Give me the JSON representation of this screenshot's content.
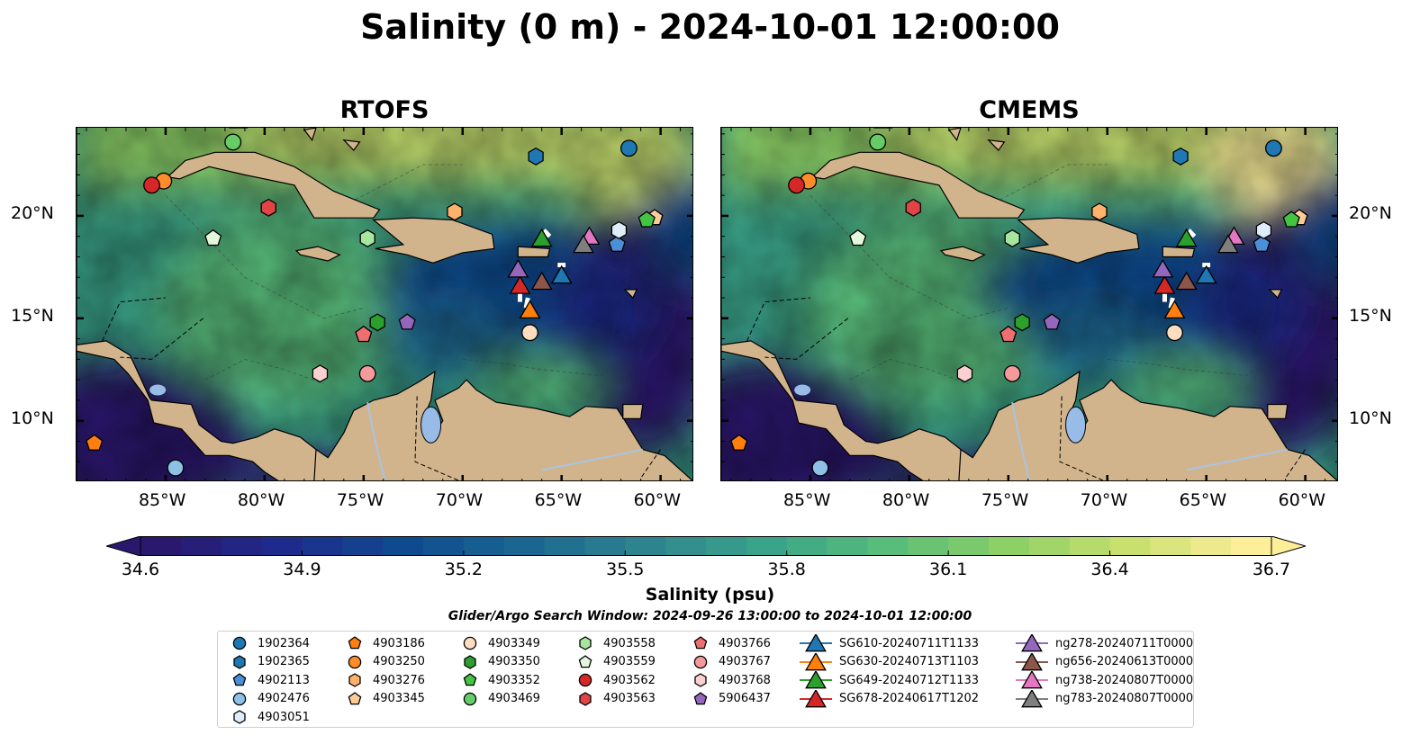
{
  "title": "Salinity (0 m) - 2024-10-01 12:00:00",
  "panels": [
    {
      "title": "RTOFS",
      "variant": "rtofs"
    },
    {
      "title": "CMEMS",
      "variant": "cmems"
    }
  ],
  "axes": {
    "lon_labels": [
      "85°W",
      "80°W",
      "75°W",
      "70°W",
      "65°W",
      "60°W"
    ],
    "lon_values": [
      -85,
      -80,
      -75,
      -70,
      -65,
      -60
    ],
    "lat_labels": [
      "20°N",
      "15°N",
      "10°N"
    ],
    "lat_values": [
      20,
      15,
      10
    ],
    "lon_range": [
      -89.5,
      -58.3
    ],
    "lat_range": [
      7.0,
      24.3
    ]
  },
  "colorbar": {
    "label": "Salinity (psu)",
    "ticks": [
      "34.6",
      "34.9",
      "35.2",
      "35.5",
      "35.8",
      "36.1",
      "36.4",
      "36.7"
    ],
    "range": [
      34.6,
      36.7
    ],
    "extend": "both",
    "colormap": "haline",
    "colors": [
      "#2a186c",
      "#1e2b8c",
      "#0f4a8f",
      "#1a6690",
      "#2e848e",
      "#3aa48a",
      "#58bc7a",
      "#8dd066",
      "#c9e06f",
      "#fdef9a"
    ]
  },
  "land_color": "#d2b48c",
  "lake_color": "#99bbe8",
  "search_window": "Glider/Argo Search Window: 2024-09-26 13:00:00 to 2024-10-01 12:00:00",
  "markers": [
    {
      "id": "1902364",
      "shape": "circle",
      "color": "#1f77b4",
      "lon": -61.6,
      "lat": 23.3
    },
    {
      "id": "1902365",
      "shape": "hexagon",
      "color": "#1f77b4",
      "lon": -66.3,
      "lat": 22.9
    },
    {
      "id": "4902113",
      "shape": "pentagon",
      "color": "#4a90d9",
      "lon": -62.2,
      "lat": 18.6
    },
    {
      "id": "4902476",
      "shape": "circle",
      "color": "#8ec1e8",
      "lon": -84.5,
      "lat": 7.7
    },
    {
      "id": "4903051",
      "shape": "hexagon",
      "color": "#ddeefa",
      "lon": -62.1,
      "lat": 19.3
    },
    {
      "id": "4903186",
      "shape": "pentagon",
      "color": "#ff7f0e",
      "lon": -88.6,
      "lat": 8.9
    },
    {
      "id": "4903250",
      "shape": "circle",
      "color": "#ff8c2a",
      "lon": -85.1,
      "lat": 21.7
    },
    {
      "id": "4903276",
      "shape": "hexagon",
      "color": "#ffb26b",
      "lon": -70.4,
      "lat": 20.2
    },
    {
      "id": "4903345",
      "shape": "pentagon",
      "color": "#ffcc99",
      "lon": -60.3,
      "lat": 19.9
    },
    {
      "id": "4903349",
      "shape": "circle",
      "color": "#ffddc0",
      "lon": -66.6,
      "lat": 14.3
    },
    {
      "id": "4903350",
      "shape": "hexagon",
      "color": "#2ca02c",
      "lon": -74.3,
      "lat": 14.8
    },
    {
      "id": "4903352",
      "shape": "pentagon",
      "color": "#43c443",
      "lon": -60.7,
      "lat": 19.8
    },
    {
      "id": "4903469",
      "shape": "circle",
      "color": "#66cc66",
      "lon": -81.6,
      "lat": 23.6
    },
    {
      "id": "4903558",
      "shape": "hexagon",
      "color": "#a8e6a0",
      "lon": -74.8,
      "lat": 18.9
    },
    {
      "id": "4903559",
      "shape": "pentagon",
      "color": "#e3f7dc",
      "lon": -82.6,
      "lat": 18.9
    },
    {
      "id": "4903562",
      "shape": "circle",
      "color": "#d62728",
      "lon": -85.7,
      "lat": 21.5
    },
    {
      "id": "4903563",
      "shape": "hexagon",
      "color": "#e04444",
      "lon": -79.8,
      "lat": 20.4
    },
    {
      "id": "4903766",
      "shape": "pentagon",
      "color": "#ee6f6f",
      "lon": -75.0,
      "lat": 14.2
    },
    {
      "id": "4903767",
      "shape": "circle",
      "color": "#f59a9a",
      "lon": -74.8,
      "lat": 12.3
    },
    {
      "id": "4903768",
      "shape": "hexagon",
      "color": "#fbd0d0",
      "lon": -77.2,
      "lat": 12.3
    },
    {
      "id": "5906437",
      "shape": "pentagon",
      "color": "#9467bd",
      "lon": -72.8,
      "lat": 14.8
    },
    {
      "id": "SG610-20240711T1133",
      "shape": "triangle",
      "color": "#1f77b4",
      "lon": -65.0,
      "lat": 17.1
    },
    {
      "id": "SG630-20240713T1103",
      "shape": "triangle",
      "color": "#ff7f0e",
      "lon": -66.6,
      "lat": 15.4
    },
    {
      "id": "SG649-20240712T1133",
      "shape": "triangle",
      "color": "#2ca02c",
      "lon": -66.0,
      "lat": 18.9
    },
    {
      "id": "SG678-20240617T1202",
      "shape": "triangle",
      "color": "#d62728",
      "lon": -67.1,
      "lat": 16.6
    },
    {
      "id": "ng278-20240711T0000",
      "shape": "triangle",
      "color": "#9467bd",
      "lon": -67.2,
      "lat": 17.4
    },
    {
      "id": "ng656-20240613T0000",
      "shape": "triangle",
      "color": "#8c564b",
      "lon": -66.0,
      "lat": 16.8
    },
    {
      "id": "ng738-20240807T0000",
      "shape": "triangle",
      "color": "#e377c2",
      "lon": -63.6,
      "lat": 19.0
    },
    {
      "id": "ng783-20240807T0000",
      "shape": "triangle",
      "color": "#7f7f7f",
      "lon": -63.9,
      "lat": 18.6
    }
  ]
}
